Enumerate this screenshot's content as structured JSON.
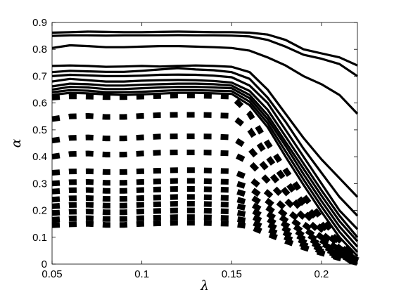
{
  "chart_data": {
    "type": "line",
    "title": "",
    "xlabel": "λ",
    "ylabel": "α",
    "xlim": [
      0.05,
      0.22
    ],
    "ylim": [
      0,
      0.9
    ],
    "xticks": [
      "0.05",
      "0.1",
      "0.15",
      "0.2"
    ],
    "yticks": [
      "0",
      "0.1",
      "0.2",
      "0.3",
      "0.4",
      "0.5",
      "0.6",
      "0.7",
      "0.8",
      "0.9"
    ],
    "grid": false,
    "legend": "none",
    "x": [
      0.05,
      0.06,
      0.07,
      0.08,
      0.09,
      0.1,
      0.11,
      0.12,
      0.13,
      0.14,
      0.15,
      0.16,
      0.17,
      0.18,
      0.19,
      0.2,
      0.21,
      0.22
    ],
    "series": [
      {
        "style": "solid",
        "values": [
          0.862,
          0.864,
          0.866,
          0.865,
          0.864,
          0.864,
          0.865,
          0.866,
          0.865,
          0.864,
          0.864,
          0.862,
          0.855,
          0.835,
          0.8,
          0.785,
          0.77,
          0.74
        ]
      },
      {
        "style": "solid",
        "values": [
          0.85,
          0.852,
          0.852,
          0.851,
          0.852,
          0.852,
          0.852,
          0.853,
          0.852,
          0.852,
          0.851,
          0.848,
          0.835,
          0.81,
          0.78,
          0.765,
          0.745,
          0.7
        ]
      },
      {
        "style": "solid",
        "values": [
          0.805,
          0.815,
          0.812,
          0.808,
          0.808,
          0.81,
          0.812,
          0.812,
          0.81,
          0.808,
          0.805,
          0.795,
          0.77,
          0.74,
          0.7,
          0.67,
          0.63,
          0.56
        ]
      },
      {
        "style": "solid",
        "values": [
          0.738,
          0.74,
          0.738,
          0.735,
          0.736,
          0.738,
          0.736,
          0.738,
          0.74,
          0.738,
          0.735,
          0.715,
          0.65,
          0.56,
          0.47,
          0.39,
          0.32,
          0.25
        ]
      },
      {
        "style": "solid",
        "values": [
          0.715,
          0.72,
          0.718,
          0.716,
          0.716,
          0.72,
          0.725,
          0.73,
          0.725,
          0.722,
          0.715,
          0.69,
          0.62,
          0.53,
          0.43,
          0.34,
          0.25,
          0.18
        ]
      },
      {
        "style": "solid",
        "values": [
          0.7,
          0.705,
          0.703,
          0.7,
          0.7,
          0.702,
          0.705,
          0.706,
          0.705,
          0.702,
          0.696,
          0.665,
          0.6,
          0.5,
          0.4,
          0.3,
          0.2,
          0.13
        ]
      },
      {
        "style": "solid",
        "values": [
          0.68,
          0.69,
          0.685,
          0.68,
          0.68,
          0.683,
          0.685,
          0.686,
          0.685,
          0.682,
          0.676,
          0.645,
          0.575,
          0.475,
          0.375,
          0.275,
          0.18,
          0.1
        ]
      },
      {
        "style": "solid",
        "values": [
          0.662,
          0.672,
          0.67,
          0.665,
          0.665,
          0.668,
          0.67,
          0.672,
          0.672,
          0.67,
          0.665,
          0.63,
          0.555,
          0.455,
          0.355,
          0.255,
          0.16,
          0.085
        ]
      },
      {
        "style": "solid",
        "values": [
          0.65,
          0.66,
          0.658,
          0.652,
          0.652,
          0.655,
          0.658,
          0.66,
          0.66,
          0.658,
          0.655,
          0.618,
          0.54,
          0.44,
          0.335,
          0.235,
          0.14,
          0.065
        ]
      },
      {
        "style": "solid",
        "values": [
          0.64,
          0.648,
          0.646,
          0.64,
          0.64,
          0.642,
          0.645,
          0.648,
          0.648,
          0.646,
          0.644,
          0.605,
          0.525,
          0.42,
          0.315,
          0.215,
          0.12,
          0.045
        ]
      },
      {
        "style": "solid",
        "values": [
          0.63,
          0.638,
          0.636,
          0.632,
          0.63,
          0.632,
          0.635,
          0.638,
          0.638,
          0.636,
          0.634,
          0.592,
          0.51,
          0.4,
          0.295,
          0.195,
          0.1,
          0.03
        ]
      },
      {
        "style": "dashed",
        "values": [
          0.62,
          0.625,
          0.624,
          0.622,
          0.622,
          0.624,
          0.626,
          0.628,
          0.628,
          0.626,
          0.624,
          0.56,
          0.45,
          0.35,
          0.255,
          0.17,
          0.09,
          0.02
        ]
      },
      {
        "style": "dashed",
        "values": [
          0.54,
          0.55,
          0.552,
          0.548,
          0.548,
          0.552,
          0.555,
          0.556,
          0.556,
          0.555,
          0.552,
          0.5,
          0.4,
          0.31,
          0.225,
          0.15,
          0.08,
          0.018
        ]
      },
      {
        "style": "dashed",
        "values": [
          0.46,
          0.47,
          0.472,
          0.468,
          0.468,
          0.472,
          0.475,
          0.476,
          0.476,
          0.475,
          0.472,
          0.43,
          0.35,
          0.27,
          0.195,
          0.13,
          0.07,
          0.015
        ]
      },
      {
        "style": "dashed",
        "values": [
          0.4,
          0.41,
          0.412,
          0.408,
          0.408,
          0.412,
          0.415,
          0.416,
          0.416,
          0.415,
          0.412,
          0.38,
          0.31,
          0.24,
          0.175,
          0.115,
          0.06,
          0.013
        ]
      },
      {
        "style": "dashed",
        "values": [
          0.34,
          0.345,
          0.346,
          0.343,
          0.343,
          0.346,
          0.348,
          0.35,
          0.35,
          0.348,
          0.346,
          0.32,
          0.265,
          0.205,
          0.15,
          0.1,
          0.052,
          0.011
        ]
      },
      {
        "style": "dashed",
        "values": [
          0.3,
          0.305,
          0.306,
          0.303,
          0.303,
          0.306,
          0.308,
          0.31,
          0.31,
          0.308,
          0.306,
          0.285,
          0.235,
          0.182,
          0.133,
          0.088,
          0.046,
          0.01
        ]
      },
      {
        "style": "dashed",
        "values": [
          0.27,
          0.275,
          0.276,
          0.273,
          0.273,
          0.276,
          0.278,
          0.28,
          0.28,
          0.278,
          0.276,
          0.255,
          0.21,
          0.163,
          0.119,
          0.079,
          0.041,
          0.009
        ]
      },
      {
        "style": "dashed",
        "values": [
          0.24,
          0.245,
          0.246,
          0.243,
          0.243,
          0.246,
          0.248,
          0.25,
          0.25,
          0.248,
          0.246,
          0.228,
          0.188,
          0.146,
          0.106,
          0.07,
          0.037,
          0.008
        ]
      },
      {
        "style": "dashed",
        "values": [
          0.215,
          0.22,
          0.221,
          0.218,
          0.218,
          0.221,
          0.223,
          0.225,
          0.225,
          0.223,
          0.221,
          0.205,
          0.168,
          0.13,
          0.094,
          0.062,
          0.033,
          0.007
        ]
      },
      {
        "style": "dashed",
        "values": [
          0.19,
          0.195,
          0.196,
          0.193,
          0.193,
          0.196,
          0.198,
          0.2,
          0.2,
          0.198,
          0.196,
          0.182,
          0.15,
          0.115,
          0.083,
          0.055,
          0.029,
          0.006
        ]
      },
      {
        "style": "dashed",
        "values": [
          0.165,
          0.17,
          0.171,
          0.168,
          0.168,
          0.171,
          0.173,
          0.175,
          0.175,
          0.173,
          0.171,
          0.16,
          0.13,
          0.1,
          0.072,
          0.048,
          0.025,
          0.005
        ]
      },
      {
        "style": "dashed",
        "values": [
          0.145,
          0.148,
          0.15,
          0.146,
          0.146,
          0.15,
          0.152,
          0.154,
          0.154,
          0.152,
          0.15,
          0.14,
          0.112,
          0.086,
          0.062,
          0.041,
          0.022,
          0.004
        ]
      }
    ]
  }
}
